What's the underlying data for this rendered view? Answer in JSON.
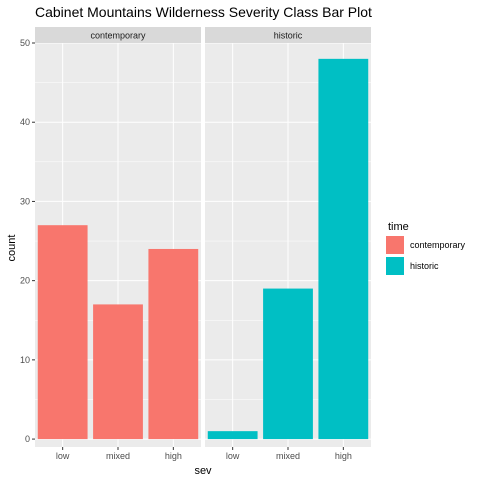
{
  "chart_data": {
    "type": "bar",
    "title": "Cabinet Mountains Wilderness Severity Class Bar Plot",
    "xlabel": "sev",
    "ylabel": "count",
    "ylim": [
      -1,
      50
    ],
    "y_ticks": [
      0,
      10,
      20,
      30,
      40,
      50
    ],
    "categories": [
      "low",
      "mixed",
      "high"
    ],
    "facets": [
      {
        "label": "contemporary",
        "series": "contemporary",
        "values": [
          27,
          17,
          24
        ]
      },
      {
        "label": "historic",
        "series": "historic",
        "values": [
          1,
          19,
          48
        ]
      }
    ],
    "legend": {
      "title": "time",
      "position": "right",
      "entries": [
        {
          "name": "contemporary",
          "color": "#F8766D"
        },
        {
          "name": "historic",
          "color": "#00BFC4"
        }
      ]
    },
    "grid": true
  }
}
